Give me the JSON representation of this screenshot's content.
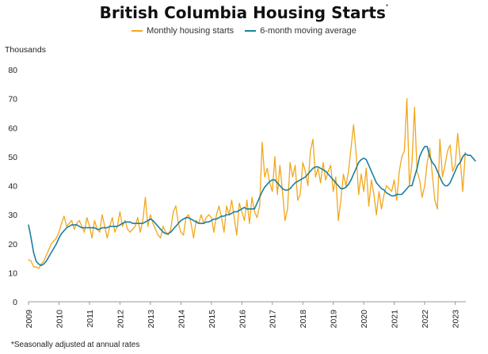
{
  "chart_data": {
    "type": "line",
    "title": "British Columbia Housing Starts",
    "title_marker": "*",
    "ylabel": "Thousands",
    "ylim": [
      0,
      80
    ],
    "yticks": [
      0,
      10,
      20,
      30,
      40,
      50,
      60,
      70,
      80
    ],
    "xlim": [
      2009.0,
      2023.35
    ],
    "xticks": [
      "2009",
      "2010",
      "2011",
      "2012",
      "2013",
      "2014",
      "2015",
      "2016",
      "2017",
      "2018",
      "2019",
      "2020",
      "2021",
      "2022",
      "2023"
    ],
    "grid": false,
    "legend_position": "top-center",
    "footnote": "*Seasonally adjusted at annual rates",
    "series": [
      {
        "name": "Monthly housing starts",
        "color": "#F2A71B",
        "x_start": 2009.0,
        "x_step_months": 1,
        "values": [
          14.5,
          14,
          12,
          12,
          11.5,
          13,
          14,
          16,
          18,
          20,
          21,
          22,
          24,
          27,
          29.5,
          26,
          27,
          28,
          25,
          27,
          28,
          26,
          24,
          29,
          26,
          22,
          28,
          25,
          24,
          30,
          26,
          22,
          26,
          29,
          24,
          26,
          31,
          26,
          28,
          25,
          24,
          25,
          26,
          29,
          24,
          28,
          36,
          26,
          30,
          27,
          25,
          23,
          22,
          26,
          24,
          23,
          25,
          31,
          33,
          27,
          24,
          23,
          29,
          30,
          27,
          22,
          28,
          27,
          30,
          27,
          29,
          30,
          29,
          24,
          30,
          33,
          29,
          24,
          33,
          30,
          35,
          29,
          23,
          34,
          31,
          28,
          35,
          27,
          36,
          31,
          29,
          33,
          55,
          43,
          46,
          41,
          38,
          50,
          37,
          47,
          38,
          28,
          32,
          48,
          43,
          47,
          35,
          37,
          48,
          45,
          40,
          52,
          56,
          43,
          46,
          41,
          48,
          42,
          45,
          47,
          38,
          43,
          28,
          35,
          44,
          40,
          45,
          53,
          61,
          51,
          37,
          44,
          38,
          46,
          33,
          42,
          37,
          30,
          38,
          32,
          37,
          40,
          39,
          38,
          42,
          35,
          45,
          50,
          52,
          70,
          40,
          48,
          67,
          45,
          42,
          36,
          40,
          48,
          53,
          44,
          35,
          32,
          56,
          43,
          47,
          52,
          54,
          45,
          47,
          58,
          49,
          38,
          51.5
        ]
      },
      {
        "name": "6-month moving average",
        "color": "#1B7FA3",
        "x_start": 2009.0,
        "x_step_months": 1,
        "values": [
          26.5,
          22,
          17,
          14,
          13,
          12.5,
          13,
          14,
          15.5,
          17,
          18.5,
          20,
          22,
          23.5,
          24.5,
          25.5,
          26,
          26.5,
          26.5,
          26.5,
          26,
          25.5,
          25.5,
          25.5,
          25.5,
          25.5,
          25.5,
          25,
          25,
          25.5,
          25.5,
          25.5,
          26,
          26,
          26,
          26,
          26.5,
          27,
          27.5,
          27.5,
          27.5,
          27,
          27,
          27,
          27,
          27,
          27.5,
          28,
          28.5,
          28,
          27,
          26,
          25,
          24,
          23.5,
          23.5,
          24,
          25,
          26,
          27,
          28,
          28.5,
          29,
          29,
          28.5,
          28,
          27.5,
          27,
          27,
          27,
          27.5,
          27.5,
          28,
          28.5,
          28.5,
          29,
          29.5,
          29.5,
          30,
          30,
          30.5,
          31,
          31,
          31.5,
          32,
          32.5,
          32,
          32,
          32,
          32,
          34,
          36,
          38,
          39.5,
          40.5,
          41.5,
          42,
          42,
          41,
          40,
          39,
          38.5,
          38.5,
          39,
          40,
          41,
          41.5,
          42,
          42.5,
          43,
          44,
          45,
          46,
          46.5,
          46.5,
          46,
          45.5,
          45,
          44,
          43,
          42,
          41,
          40,
          39,
          39,
          39.5,
          40.5,
          42,
          44,
          46,
          48,
          49,
          49.5,
          49,
          47,
          45,
          43,
          41,
          40,
          39,
          38.5,
          37.5,
          37,
          36.5,
          36.5,
          37,
          37,
          37,
          38,
          39,
          40,
          40,
          43,
          46,
          50,
          52,
          53.5,
          53.5,
          50,
          48,
          47,
          45,
          43,
          41,
          40,
          40,
          41,
          43,
          45,
          47,
          48,
          50,
          51,
          50.5,
          50.5,
          49.5,
          48.5
        ]
      }
    ]
  }
}
